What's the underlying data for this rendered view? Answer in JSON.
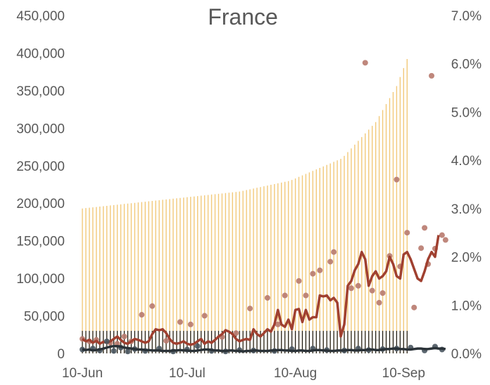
{
  "chart_data": {
    "type": "bar",
    "title": "France",
    "xlabel": "",
    "ylabel": "",
    "x_tick_labels": [
      "10-Jun",
      "10-Jul",
      "10-Aug",
      "10-Sep"
    ],
    "x_tick_days": [
      0,
      30,
      61,
      92
    ],
    "ylim_left": [
      0,
      450000
    ],
    "yticks_left": [
      "0",
      "50,000",
      "100,000",
      "150,000",
      "200,000",
      "250,000",
      "300,000",
      "350,000",
      "400,000",
      "450,000"
    ],
    "ylim_right": [
      0,
      7.0
    ],
    "yticks_right": [
      "0.0%",
      "1.0%",
      "2.0%",
      "3.0%",
      "4.0%",
      "5.0%",
      "6.0%",
      "7.0%"
    ],
    "grid": false,
    "legend": "none",
    "colors": {
      "cumulative": "#F2C97A",
      "daily": "#1A1A1A",
      "positivity_points": "#B87A6E",
      "positivity_avg": "#A04030",
      "deaths_points": "#4A5660",
      "deaths_avg": "#2A3238",
      "text": "#595959"
    },
    "series": [
      {
        "axis": "left",
        "style": "bar",
        "values": [
          193000,
          193500,
          194000,
          194500,
          195000,
          195500,
          196000,
          196500,
          197000,
          197500,
          198000,
          198500,
          199000,
          199500,
          200000,
          200500,
          201000,
          201500,
          202000,
          202500,
          203000,
          203500,
          204000,
          204500,
          205000,
          205500,
          206000,
          206500,
          207000,
          207500,
          208000,
          208500,
          209000,
          209500,
          210000,
          210500,
          211000,
          211500,
          212000,
          212500,
          213000,
          213500,
          214000,
          214500,
          215000,
          215500,
          216500,
          217500,
          218500,
          219500,
          220500,
          221500,
          222500,
          223500,
          224500,
          225500,
          226500,
          227500,
          228500,
          229500,
          231000,
          233000,
          235000,
          237000,
          239000,
          241000,
          243000,
          245000,
          247000,
          249000,
          251000,
          253000,
          255000,
          257000,
          259000,
          263000,
          268000,
          273000,
          278000,
          283000,
          288000,
          293000,
          298000,
          303000,
          308000,
          316000,
          324000,
          332000,
          340000,
          348000,
          356000,
          368000,
          380000,
          392000
        ]
      },
      {
        "axis": "left",
        "style": "bar",
        "values": [
          30000,
          30000,
          30000,
          30000,
          30000,
          30000,
          30000,
          30000,
          30000,
          30000,
          30000,
          30000,
          30000,
          30000,
          30000,
          30000,
          30000,
          30000,
          30000,
          30000,
          30000,
          30000,
          30000,
          30000,
          30000,
          30000,
          30000,
          30000,
          30000,
          30000,
          30000,
          30000,
          30000,
          30000,
          30000,
          30000,
          30000,
          30000,
          30000,
          30000,
          30000,
          30000,
          30000,
          30000,
          30000,
          30000,
          30000,
          30000,
          30000,
          30000,
          30000,
          30000,
          30000,
          30000,
          30000,
          30000,
          30000,
          30000,
          30000,
          30000,
          30000,
          30000,
          30000,
          30000,
          30000,
          30000,
          30000,
          30000,
          30000,
          30000,
          30000,
          30000,
          30000,
          30000,
          30000,
          30000,
          30000,
          30000,
          30000,
          30000,
          30000,
          30000,
          30000,
          30000,
          30000,
          30000,
          30000,
          30000,
          30000,
          30000,
          30000,
          30000,
          30000,
          30000
        ]
      },
      {
        "axis": "right",
        "style": "points",
        "points": [
          [
            0,
            0.3
          ],
          [
            2,
            0.25
          ],
          [
            4,
            0.28
          ],
          [
            8,
            0.22
          ],
          [
            10,
            0.2
          ],
          [
            12,
            0.35
          ],
          [
            14,
            0.25
          ],
          [
            17,
            0.8
          ],
          [
            20,
            0.98
          ],
          [
            24,
            0.26
          ],
          [
            28,
            0.65
          ],
          [
            31,
            0.6
          ],
          [
            35,
            0.78
          ],
          [
            40,
            0.34
          ],
          [
            44,
            0.42
          ],
          [
            48,
            0.93
          ],
          [
            53,
            1.15
          ],
          [
            56,
            0.6
          ],
          [
            58,
            1.2
          ],
          [
            62,
            1.5
          ],
          [
            64,
            1.2
          ],
          [
            66,
            1.65
          ],
          [
            68,
            1.72
          ],
          [
            71,
            1.9
          ],
          [
            72,
            2.1
          ],
          [
            77,
            1.35
          ],
          [
            79,
            1.4
          ],
          [
            81,
            6.02
          ],
          [
            83,
            1.3
          ],
          [
            85,
            1.05
          ],
          [
            86,
            1.25
          ],
          [
            88,
            2.02
          ],
          [
            90,
            3.6
          ],
          [
            91,
            1.8
          ],
          [
            93,
            2.5
          ],
          [
            95,
            0.95
          ],
          [
            97,
            2.18
          ],
          [
            98,
            2.6
          ],
          [
            99,
            1.85
          ],
          [
            100,
            5.75
          ],
          [
            101,
            2.17
          ],
          [
            103,
            2.45
          ],
          [
            104,
            2.35
          ]
        ]
      },
      {
        "axis": "right",
        "style": "line",
        "values": [
          0.3,
          0.25,
          0.28,
          0.22,
          0.26,
          0.2,
          0.24,
          0.22,
          0.25,
          0.3,
          0.35,
          0.28,
          0.22,
          0.2,
          0.25,
          0.3,
          0.28,
          0.25,
          0.22,
          0.25,
          0.4,
          0.5,
          0.48,
          0.5,
          0.42,
          0.3,
          0.22,
          0.2,
          0.22,
          0.25,
          0.2,
          0.18,
          0.2,
          0.25,
          0.3,
          0.2,
          0.25,
          0.22,
          0.28,
          0.35,
          0.4,
          0.48,
          0.45,
          0.4,
          0.3,
          0.25,
          0.28,
          0.3,
          0.28,
          0.5,
          0.4,
          0.35,
          0.42,
          0.5,
          0.45,
          0.6,
          0.9,
          0.6,
          0.55,
          0.7,
          0.5,
          0.9,
          0.92,
          0.65,
          0.9,
          0.7,
          0.75,
          0.75,
          1.2,
          1.18,
          1.2,
          1.1,
          1.15,
          1.05,
          0.35,
          0.6,
          1.4,
          1.5,
          1.72,
          1.85,
          2.1,
          1.95,
          1.4,
          1.6,
          1.7,
          1.55,
          1.6,
          1.7,
          2.0,
          1.85,
          1.6,
          1.55,
          2.05,
          2.1,
          1.95,
          1.75,
          1.55,
          1.5,
          1.7,
          1.95,
          2.1,
          2.0,
          2.45
        ]
      },
      {
        "axis": "right",
        "style": "points",
        "points": [
          [
            0,
            0.08
          ],
          [
            3,
            0.1
          ],
          [
            5,
            0.06
          ],
          [
            7,
            0.25
          ],
          [
            9,
            0.05
          ],
          [
            11,
            0.12
          ],
          [
            13,
            0.04
          ],
          [
            15,
            0.09
          ],
          [
            18,
            0.05
          ],
          [
            22,
            0.1
          ],
          [
            26,
            0.04
          ],
          [
            30,
            0.08
          ],
          [
            33,
            0.15
          ],
          [
            37,
            0.05
          ],
          [
            41,
            0.04
          ],
          [
            45,
            0.07
          ],
          [
            49,
            0.06
          ],
          [
            55,
            0.05
          ],
          [
            60,
            0.09
          ],
          [
            66,
            0.1
          ],
          [
            70,
            0.07
          ],
          [
            75,
            0.06
          ],
          [
            79,
            0.1
          ],
          [
            82,
            0.07
          ],
          [
            86,
            0.09
          ],
          [
            90,
            0.1
          ],
          [
            94,
            0.12
          ],
          [
            98,
            0.06
          ],
          [
            101,
            0.14
          ],
          [
            103,
            0.08
          ]
        ]
      },
      {
        "axis": "right",
        "style": "line",
        "values": [
          0.08,
          0.07,
          0.08,
          0.06,
          0.07,
          0.08,
          0.1,
          0.12,
          0.14,
          0.15,
          0.15,
          0.14,
          0.12,
          0.11,
          0.1,
          0.09,
          0.08,
          0.08,
          0.07,
          0.07,
          0.06,
          0.06,
          0.06,
          0.05,
          0.05,
          0.05,
          0.06,
          0.06,
          0.07,
          0.06,
          0.06,
          0.05,
          0.05,
          0.06,
          0.07,
          0.08,
          0.08,
          0.07,
          0.06,
          0.06,
          0.05,
          0.05,
          0.06,
          0.06,
          0.05,
          0.05,
          0.04,
          0.05,
          0.05,
          0.06,
          0.06,
          0.05,
          0.05,
          0.05,
          0.06,
          0.06,
          0.07,
          0.07,
          0.06,
          0.06,
          0.05,
          0.05,
          0.06,
          0.06,
          0.05,
          0.05,
          0.06,
          0.07,
          0.07,
          0.06,
          0.06,
          0.05,
          0.05,
          0.06,
          0.06,
          0.06,
          0.07,
          0.07,
          0.06,
          0.06,
          0.07,
          0.07,
          0.08,
          0.08,
          0.07,
          0.07,
          0.08,
          0.09,
          0.09,
          0.1,
          0.1,
          0.09,
          0.09,
          0.08,
          0.08,
          0.09,
          0.1,
          0.1,
          0.09,
          0.09,
          0.1,
          0.11,
          0.1,
          0.1,
          0.09
        ]
      }
    ]
  }
}
